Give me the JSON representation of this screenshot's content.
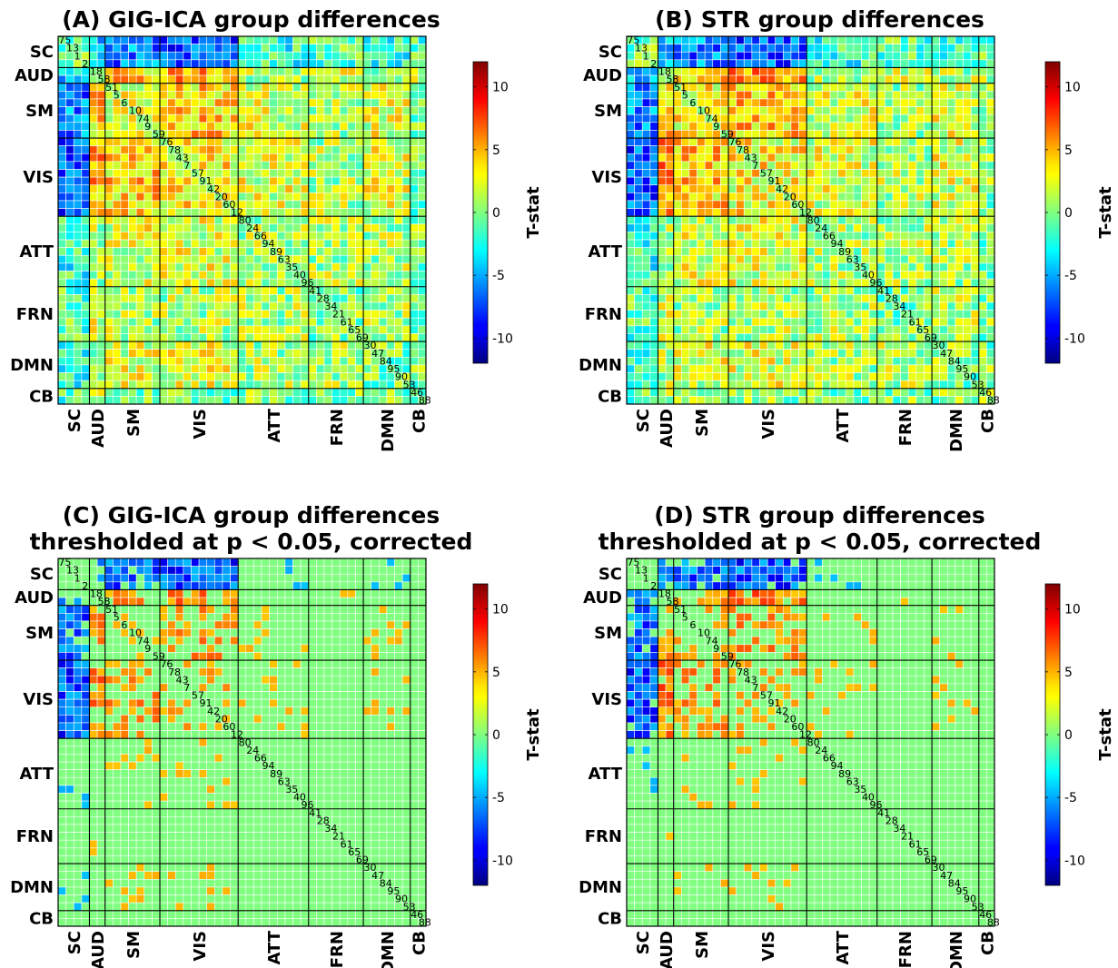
{
  "chart_data": [
    {
      "type": "heatmap",
      "title": [
        "(A) GIG-ICA group differences"
      ],
      "thresholded": false,
      "colorbar_label": "T-stat"
    },
    {
      "type": "heatmap",
      "title": [
        "(B) STR group differences"
      ],
      "thresholded": false,
      "colorbar_label": "T-stat"
    },
    {
      "type": "heatmap",
      "title": [
        "(C) GIG-ICA group differences",
        "thresholded at p < 0.05, corrected"
      ],
      "thresholded": true,
      "colorbar_label": "T-stat"
    },
    {
      "type": "heatmap",
      "title": [
        "(D) STR group differences",
        "thresholded at p < 0.05, corrected"
      ],
      "thresholded": true,
      "colorbar_label": "T-stat"
    }
  ],
  "matrix": {
    "n_components": 47,
    "component_order": [
      "75",
      "13",
      "1",
      "2",
      "18",
      "58",
      "51",
      "5",
      "6",
      "10",
      "74",
      "9",
      "59",
      "76",
      "78",
      "43",
      "7",
      "57",
      "91",
      "42",
      "20",
      "60",
      "12",
      "80",
      "24",
      "66",
      "94",
      "89",
      "63",
      "35",
      "40",
      "96",
      "41",
      "28",
      "34",
      "21",
      "61",
      "65",
      "69",
      "30",
      "47",
      "84",
      "95",
      "90",
      "53",
      "46",
      "88"
    ],
    "networks": [
      {
        "name": "SC",
        "count": 4
      },
      {
        "name": "AUD",
        "count": 2
      },
      {
        "name": "SM",
        "count": 7
      },
      {
        "name": "VIS",
        "count": 10
      },
      {
        "name": "ATT",
        "count": 9
      },
      {
        "name": "FRN",
        "count": 7
      },
      {
        "name": "DMN",
        "count": 6
      },
      {
        "name": "CB",
        "count": 2
      }
    ],
    "color_range": [
      -12,
      12
    ]
  },
  "colorbar": {
    "ticks": [
      10,
      5,
      0,
      -5,
      -10
    ],
    "tick_labels": [
      "10",
      "5",
      "0",
      "-5",
      "-10"
    ],
    "colormap": "jet"
  }
}
